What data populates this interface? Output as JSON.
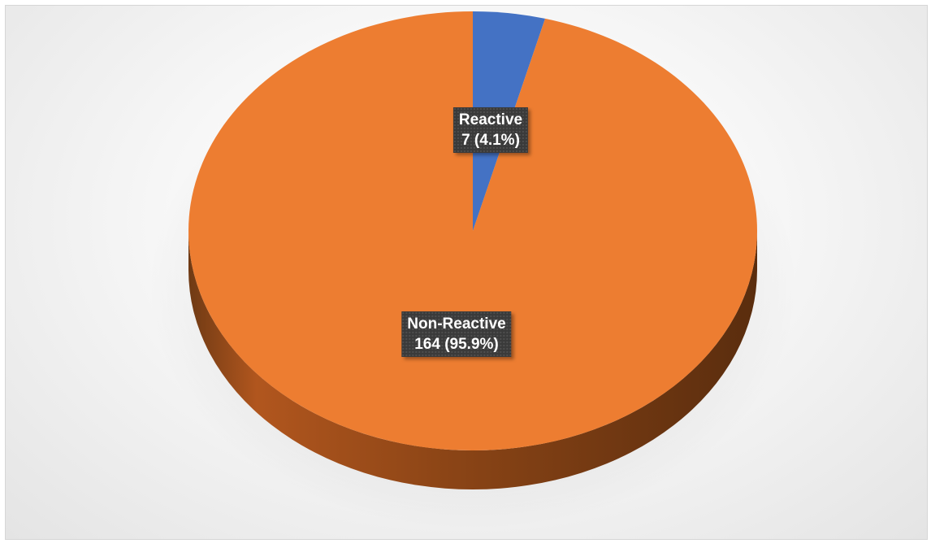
{
  "chart_data": {
    "type": "pie",
    "style": "3d",
    "title": "",
    "legend": "none",
    "slices": [
      {
        "category": "Reactive",
        "value": 7,
        "percent": "4.1%",
        "value_label": "7 (4.1%)",
        "color": "#4472c4"
      },
      {
        "category": "Non-Reactive",
        "value": 164,
        "percent": "95.9%",
        "value_label": "164 (95.9%)",
        "color": "#ed7d31"
      }
    ]
  }
}
